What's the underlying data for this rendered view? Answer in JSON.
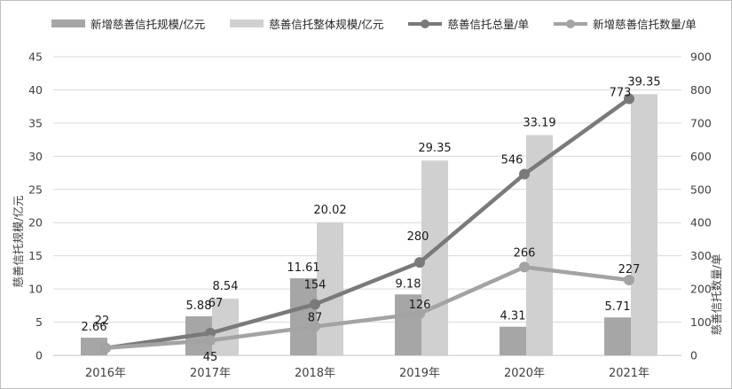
{
  "chart_data": {
    "type": "bar",
    "categories": [
      "2016年",
      "2017年",
      "2018年",
      "2019年",
      "2020年",
      "2021年"
    ],
    "series": [
      {
        "name": "新增慈善信托规模/亿元",
        "type": "bar",
        "axis": "left",
        "color": "#a6a6a6",
        "values": [
          2.66,
          5.88,
          11.61,
          9.18,
          4.31,
          5.71
        ]
      },
      {
        "name": "慈善信托整体规模/亿元",
        "type": "bar",
        "axis": "left",
        "color": "#d0d0d0",
        "values": [
          null,
          8.54,
          20.02,
          29.35,
          33.19,
          39.35
        ]
      },
      {
        "name": "慈善信托总量/单",
        "type": "line",
        "axis": "right",
        "color": "#7a7a7a",
        "values": [
          22,
          67,
          154,
          280,
          546,
          773
        ]
      },
      {
        "name": "新增慈善信托数量/单",
        "type": "line",
        "axis": "right",
        "color": "#a3a3a3",
        "values": [
          22,
          45,
          87,
          126,
          266,
          227
        ]
      }
    ],
    "y_left": {
      "label": "慈善信托规模/亿元",
      "min": 0,
      "max": 45,
      "step": 5,
      "ticks": [
        "0",
        "5",
        "10",
        "15",
        "20",
        "25",
        "30",
        "35",
        "40",
        "45"
      ]
    },
    "y_right": {
      "label": "慈善信托数量/单",
      "min": 0,
      "max": 900,
      "step": 100,
      "ticks": [
        "0",
        "100",
        "200",
        "300",
        "400",
        "500",
        "600",
        "700",
        "800",
        "900"
      ]
    },
    "grid": true,
    "legend_position": "top"
  }
}
